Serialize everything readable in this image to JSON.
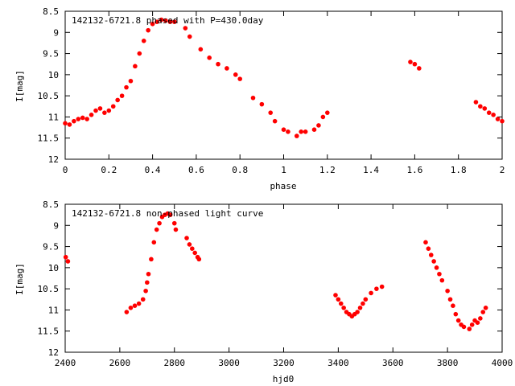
{
  "chart_data": [
    {
      "type": "scatter",
      "title": "142132-6721.8 phased with P=430.0day",
      "xlabel": "phase",
      "ylabel": "I[mag]",
      "xlim": [
        0,
        2
      ],
      "ylim": [
        12,
        8.5
      ],
      "y_inverted": true,
      "grid": false,
      "xticks": [
        "0",
        "0.2",
        "0.4",
        "0.6",
        "0.8",
        "1",
        "1.2",
        "1.4",
        "1.6",
        "1.8",
        "2"
      ],
      "yticks": [
        "8.5",
        "9",
        "9.5",
        "10",
        "10.5",
        "11",
        "11.5",
        "12"
      ],
      "marker_color": "#ff0000",
      "series": [
        {
          "x": [
            0.0,
            0.02,
            0.04,
            0.06,
            0.08,
            0.1,
            0.12,
            0.14,
            0.16,
            0.18,
            0.2,
            0.22,
            0.24,
            0.26,
            0.28,
            0.3,
            0.32,
            0.34,
            0.36,
            0.38,
            0.4,
            0.42,
            0.44,
            0.46,
            0.48,
            0.5,
            0.55,
            0.57,
            0.62,
            0.66,
            0.7,
            0.74,
            0.78,
            0.8,
            0.86,
            0.9,
            0.94,
            0.96,
            1.0,
            1.02,
            1.06,
            1.08,
            1.1,
            1.14,
            1.16,
            1.18,
            1.2,
            1.58,
            1.6,
            1.62,
            1.88,
            1.9,
            1.92,
            1.94,
            1.96,
            1.98,
            2.0
          ],
          "y": [
            11.15,
            11.18,
            11.1,
            11.05,
            11.02,
            11.05,
            10.95,
            10.85,
            10.8,
            10.9,
            10.85,
            10.75,
            10.6,
            10.5,
            10.3,
            10.15,
            9.8,
            9.5,
            9.2,
            8.95,
            8.8,
            8.75,
            8.7,
            8.72,
            8.75,
            8.75,
            8.9,
            9.1,
            9.4,
            9.6,
            9.75,
            9.85,
            10.0,
            10.1,
            10.55,
            10.7,
            10.9,
            11.1,
            11.3,
            11.35,
            11.45,
            11.35,
            11.35,
            11.3,
            11.2,
            11.0,
            10.9,
            9.7,
            9.75,
            9.85,
            10.65,
            10.75,
            10.8,
            10.9,
            10.95,
            11.05,
            11.1
          ]
        }
      ]
    },
    {
      "type": "scatter",
      "title": "142132-6721.8 non-phased light curve",
      "xlabel": "hjd0",
      "ylabel": "I[mag]",
      "xlim": [
        2400,
        4000
      ],
      "ylim": [
        12,
        8.5
      ],
      "y_inverted": true,
      "grid": false,
      "xticks": [
        "2400",
        "2600",
        "2800",
        "3000",
        "3200",
        "3400",
        "3600",
        "3800",
        "4000"
      ],
      "yticks": [
        "8.5",
        "9",
        "9.5",
        "10",
        "10.5",
        "11",
        "11.5",
        "12"
      ],
      "marker_color": "#ff0000",
      "series": [
        {
          "x": [
            2402,
            2410,
            2625,
            2640,
            2655,
            2670,
            2685,
            2695,
            2700,
            2705,
            2715,
            2725,
            2735,
            2745,
            2755,
            2765,
            2775,
            2785,
            2800,
            2805,
            2845,
            2855,
            2865,
            2875,
            2885,
            2890,
            3390,
            3400,
            3410,
            3420,
            3430,
            3440,
            3450,
            3460,
            3470,
            3480,
            3490,
            3500,
            3520,
            3540,
            3560,
            3720,
            3730,
            3740,
            3750,
            3760,
            3770,
            3780,
            3800,
            3810,
            3820,
            3830,
            3840,
            3850,
            3860,
            3880,
            3890,
            3900,
            3910,
            3920,
            3930,
            3940
          ],
          "y": [
            9.75,
            9.85,
            11.05,
            10.95,
            10.9,
            10.85,
            10.75,
            10.55,
            10.35,
            10.15,
            9.8,
            9.4,
            9.1,
            8.95,
            8.8,
            8.75,
            8.72,
            8.75,
            8.95,
            9.1,
            9.3,
            9.45,
            9.55,
            9.65,
            9.75,
            9.8,
            10.65,
            10.75,
            10.85,
            10.95,
            11.05,
            11.1,
            11.15,
            11.1,
            11.05,
            10.95,
            10.85,
            10.75,
            10.6,
            10.5,
            10.45,
            9.4,
            9.55,
            9.7,
            9.85,
            10.0,
            10.15,
            10.3,
            10.55,
            10.75,
            10.9,
            11.1,
            11.25,
            11.35,
            11.4,
            11.45,
            11.35,
            11.25,
            11.3,
            11.2,
            11.05,
            10.95
          ]
        }
      ]
    }
  ]
}
